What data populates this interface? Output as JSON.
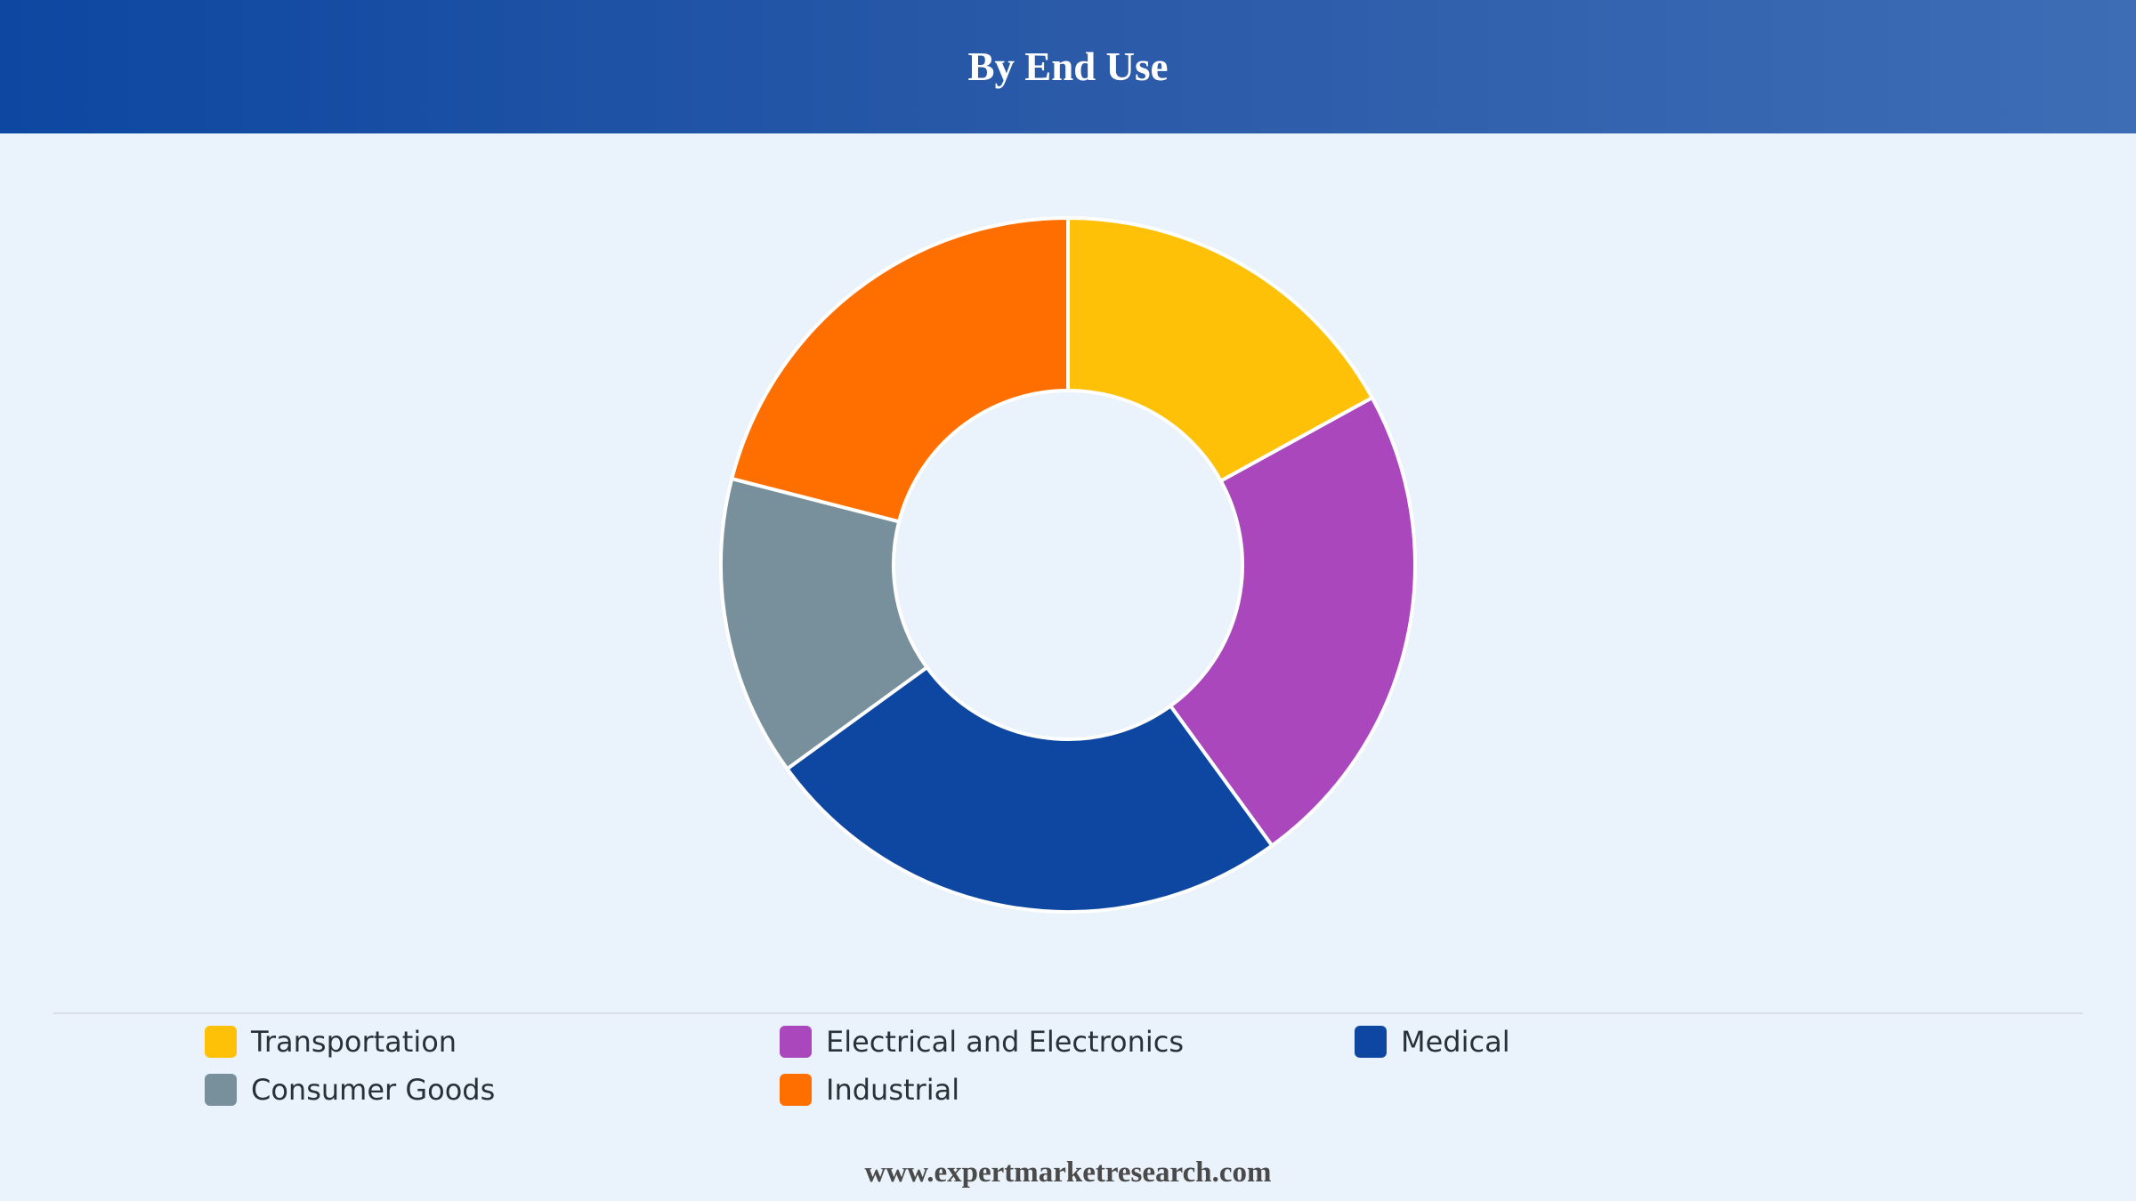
{
  "header": {
    "title": "By End Use"
  },
  "chart_data": {
    "type": "pie",
    "variant": "donut",
    "title": "By End Use",
    "categories": [
      "Transportation",
      "Electrical and Electronics",
      "Medical",
      "Consumer Goods",
      "Industrial"
    ],
    "values": [
      17,
      23,
      25,
      14,
      21
    ],
    "colors": [
      "#ffc107",
      "#ab47bc",
      "#0d47a1",
      "#78909c",
      "#ff6f00"
    ],
    "legend_position": "bottom"
  },
  "legend": {
    "items": [
      {
        "label": "Transportation",
        "color": "#ffc107"
      },
      {
        "label": "Electrical and Electronics",
        "color": "#ab47bc"
      },
      {
        "label": "Medical",
        "color": "#0d47a1"
      },
      {
        "label": "Consumer Goods",
        "color": "#78909c"
      },
      {
        "label": "Industrial",
        "color": "#ff6f00"
      }
    ]
  },
  "footer": {
    "source": "www.expertmarketresearch.com"
  }
}
